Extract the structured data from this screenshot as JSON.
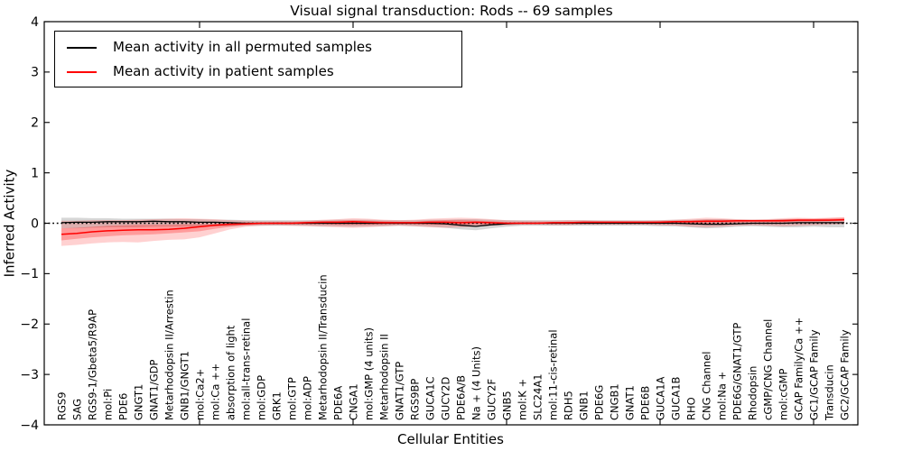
{
  "figure": {
    "title": "Visual signal transduction: Rods -- 69 samples",
    "xlabel": "Cellular Entities",
    "ylabel": "Inferred Activity"
  },
  "legend": {
    "items": [
      {
        "label": "Mean activity in all permuted samples",
        "color": "#000000"
      },
      {
        "label": "Mean activity in patient samples",
        "color": "#ff0000"
      }
    ],
    "position": "upper left"
  },
  "chart_data": {
    "type": "line",
    "title": "Visual signal transduction: Rods -- 69 samples",
    "xlabel": "Cellular Entities",
    "ylabel": "Inferred Activity",
    "ylim": [
      -4,
      4
    ],
    "yticks": [
      4,
      3,
      2,
      1,
      0,
      -1,
      -2,
      -3,
      -4
    ],
    "x_major_tick_indices": [
      9,
      19,
      29,
      39,
      49
    ],
    "grid": false,
    "zero_line": {
      "y": 0,
      "style": "dotted",
      "color": "#000000"
    },
    "categories": [
      "RGS9",
      "SAG",
      "RGS9-1/Gbeta5/R9AP",
      "mol:Pi",
      "PDE6",
      "GNGT1",
      "GNAT1/GDP",
      "Metarhodopsin II/Arrestin",
      "GNB1/GNGT1",
      "mol:Ca2+",
      "mol:Ca ++",
      "absorption of light",
      "mol:all-trans-retinal",
      "mol:GDP",
      "GRK1",
      "mol:GTP",
      "mol:ADP",
      "Metarhodopsin II/Transducin",
      "PDE6A",
      "CNGA1",
      "mol:GMP (4 units)",
      "Metarhodopsin II",
      "GNAT1/GTP",
      "RGS9BP",
      "GUCA1C",
      "GUCY2D",
      "PDE6A/B",
      "Na + (4 Units)",
      "GUCY2F",
      "GNB5",
      "mol:K +",
      "SLC24A1",
      "mol:11-cis-retinal",
      "RDH5",
      "GNB1",
      "PDE6G",
      "CNGB1",
      "GNAT1",
      "PDE6B",
      "GUCA1A",
      "GUCA1B",
      "RHO",
      "CNG Channel",
      "mol:Na +",
      "PDE6G/GNAT1/GTP",
      "Rhodopsin",
      "cGMP/CNG Channel",
      "mol:cGMP",
      "GCAP Family/Ca ++",
      "GC1/GCAP Family",
      "Transducin",
      "GC2/GCAP Family"
    ],
    "series": [
      {
        "name": "Mean activity in all permuted samples",
        "color": "#000000",
        "width": 1.3,
        "values": [
          0.01,
          0.02,
          0.02,
          0.03,
          0.03,
          0.03,
          0.04,
          0.03,
          0.03,
          0.02,
          0.02,
          0.01,
          0,
          0,
          0,
          0,
          0,
          0,
          0,
          0,
          0,
          0,
          0,
          0,
          0,
          -0.01,
          -0.04,
          -0.06,
          -0.03,
          -0.01,
          0,
          0,
          0,
          0,
          0,
          0,
          0,
          0,
          0,
          0,
          0,
          -0.01,
          -0.02,
          -0.02,
          -0.01,
          0,
          0,
          0,
          0.01,
          0.01,
          0.01,
          0.01
        ]
      },
      {
        "name": "Mean activity in patient samples",
        "color": "#ff0000",
        "width": 1.5,
        "values": [
          -0.22,
          -0.2,
          -0.17,
          -0.15,
          -0.14,
          -0.13,
          -0.13,
          -0.12,
          -0.1,
          -0.07,
          -0.04,
          -0.02,
          -0.01,
          0,
          0,
          0,
          0.01,
          0.02,
          0.02,
          0.03,
          0.02,
          0.01,
          0.01,
          0.01,
          0.02,
          0.02,
          0.01,
          0.02,
          0.01,
          0,
          0,
          0,
          0.01,
          0.01,
          0.02,
          0.02,
          0.02,
          0.02,
          0.02,
          0.02,
          0.03,
          0.03,
          0.04,
          0.04,
          0.05,
          0.05,
          0.05,
          0.05,
          0.06,
          0.06,
          0.06,
          0.07
        ]
      }
    ],
    "bands": [
      {
        "name": "permuted-samples-range",
        "color": "#000000",
        "opacity": 0.16,
        "low": [
          -0.1,
          -0.1,
          -0.09,
          -0.08,
          -0.08,
          -0.08,
          -0.07,
          -0.07,
          -0.07,
          -0.07,
          -0.06,
          -0.06,
          -0.05,
          -0.05,
          -0.05,
          -0.05,
          -0.05,
          -0.06,
          -0.06,
          -0.07,
          -0.06,
          -0.06,
          -0.05,
          -0.06,
          -0.07,
          -0.09,
          -0.12,
          -0.14,
          -0.1,
          -0.07,
          -0.05,
          -0.05,
          -0.05,
          -0.05,
          -0.05,
          -0.05,
          -0.05,
          -0.05,
          -0.05,
          -0.06,
          -0.06,
          -0.08,
          -0.1,
          -0.09,
          -0.07,
          -0.06,
          -0.07,
          -0.08,
          -0.08,
          -0.07,
          -0.08,
          -0.08
        ],
        "high": [
          0.11,
          0.11,
          0.1,
          0.1,
          0.09,
          0.09,
          0.09,
          0.09,
          0.08,
          0.08,
          0.07,
          0.07,
          0.06,
          0.06,
          0.06,
          0.06,
          0.06,
          0.06,
          0.07,
          0.07,
          0.07,
          0.06,
          0.06,
          0.06,
          0.07,
          0.07,
          0.08,
          0.08,
          0.07,
          0.06,
          0.06,
          0.06,
          0.06,
          0.06,
          0.06,
          0.06,
          0.06,
          0.06,
          0.06,
          0.06,
          0.07,
          0.07,
          0.08,
          0.08,
          0.07,
          0.07,
          0.07,
          0.08,
          0.08,
          0.08,
          0.08,
          0.09
        ]
      },
      {
        "name": "patient-samples-range-outer",
        "color": "#ff0000",
        "opacity": 0.18,
        "low": [
          -0.45,
          -0.43,
          -0.4,
          -0.38,
          -0.37,
          -0.38,
          -0.35,
          -0.33,
          -0.32,
          -0.28,
          -0.2,
          -0.12,
          -0.07,
          -0.05,
          -0.04,
          -0.05,
          -0.06,
          -0.07,
          -0.08,
          -0.09,
          -0.08,
          -0.06,
          -0.05,
          -0.06,
          -0.08,
          -0.09,
          -0.08,
          -0.07,
          -0.05,
          -0.04,
          -0.03,
          -0.03,
          -0.04,
          -0.04,
          -0.03,
          -0.03,
          -0.03,
          -0.03,
          -0.03,
          -0.04,
          -0.05,
          -0.07,
          -0.08,
          -0.07,
          -0.05,
          -0.04,
          -0.05,
          -0.06,
          -0.05,
          -0.04,
          -0.03,
          -0.02
        ],
        "high": [
          0.05,
          0.05,
          0.06,
          0.06,
          0.06,
          0.07,
          0.08,
          0.09,
          0.1,
          0.09,
          0.08,
          0.06,
          0.05,
          0.04,
          0.04,
          0.04,
          0.05,
          0.07,
          0.08,
          0.1,
          0.09,
          0.07,
          0.06,
          0.07,
          0.09,
          0.1,
          0.11,
          0.1,
          0.08,
          0.06,
          0.05,
          0.05,
          0.05,
          0.06,
          0.06,
          0.05,
          0.05,
          0.05,
          0.05,
          0.06,
          0.07,
          0.09,
          0.11,
          0.1,
          0.08,
          0.07,
          0.08,
          0.1,
          0.11,
          0.1,
          0.11,
          0.12
        ]
      },
      {
        "name": "patient-samples-range-inner",
        "color": "#ff0000",
        "opacity": 0.26,
        "low": [
          -0.34,
          -0.31,
          -0.28,
          -0.26,
          -0.24,
          -0.23,
          -0.22,
          -0.2,
          -0.18,
          -0.16,
          -0.11,
          -0.07,
          -0.04,
          -0.02,
          -0.02,
          -0.02,
          -0.02,
          -0.02,
          -0.03,
          -0.03,
          -0.03,
          -0.02,
          -0.02,
          -0.02,
          -0.03,
          -0.03,
          -0.03,
          -0.02,
          -0.02,
          -0.01,
          -0.01,
          -0.01,
          -0.01,
          -0.01,
          0,
          0,
          0,
          0,
          0,
          0,
          0,
          -0.01,
          -0.01,
          0,
          0.01,
          0.02,
          0.02,
          0.02,
          0.03,
          0.03,
          0.04,
          0.05
        ],
        "high": [
          -0.1,
          -0.09,
          -0.07,
          -0.05,
          -0.04,
          -0.03,
          -0.03,
          -0.03,
          -0.02,
          -0.02,
          -0.01,
          0,
          0.01,
          0.01,
          0.02,
          0.02,
          0.03,
          0.04,
          0.05,
          0.06,
          0.05,
          0.04,
          0.03,
          0.03,
          0.05,
          0.06,
          0.06,
          0.05,
          0.04,
          0.02,
          0.02,
          0.02,
          0.02,
          0.03,
          0.03,
          0.03,
          0.03,
          0.03,
          0.03,
          0.04,
          0.05,
          0.06,
          0.07,
          0.07,
          0.07,
          0.07,
          0.07,
          0.08,
          0.09,
          0.09,
          0.1,
          0.11
        ]
      }
    ]
  }
}
